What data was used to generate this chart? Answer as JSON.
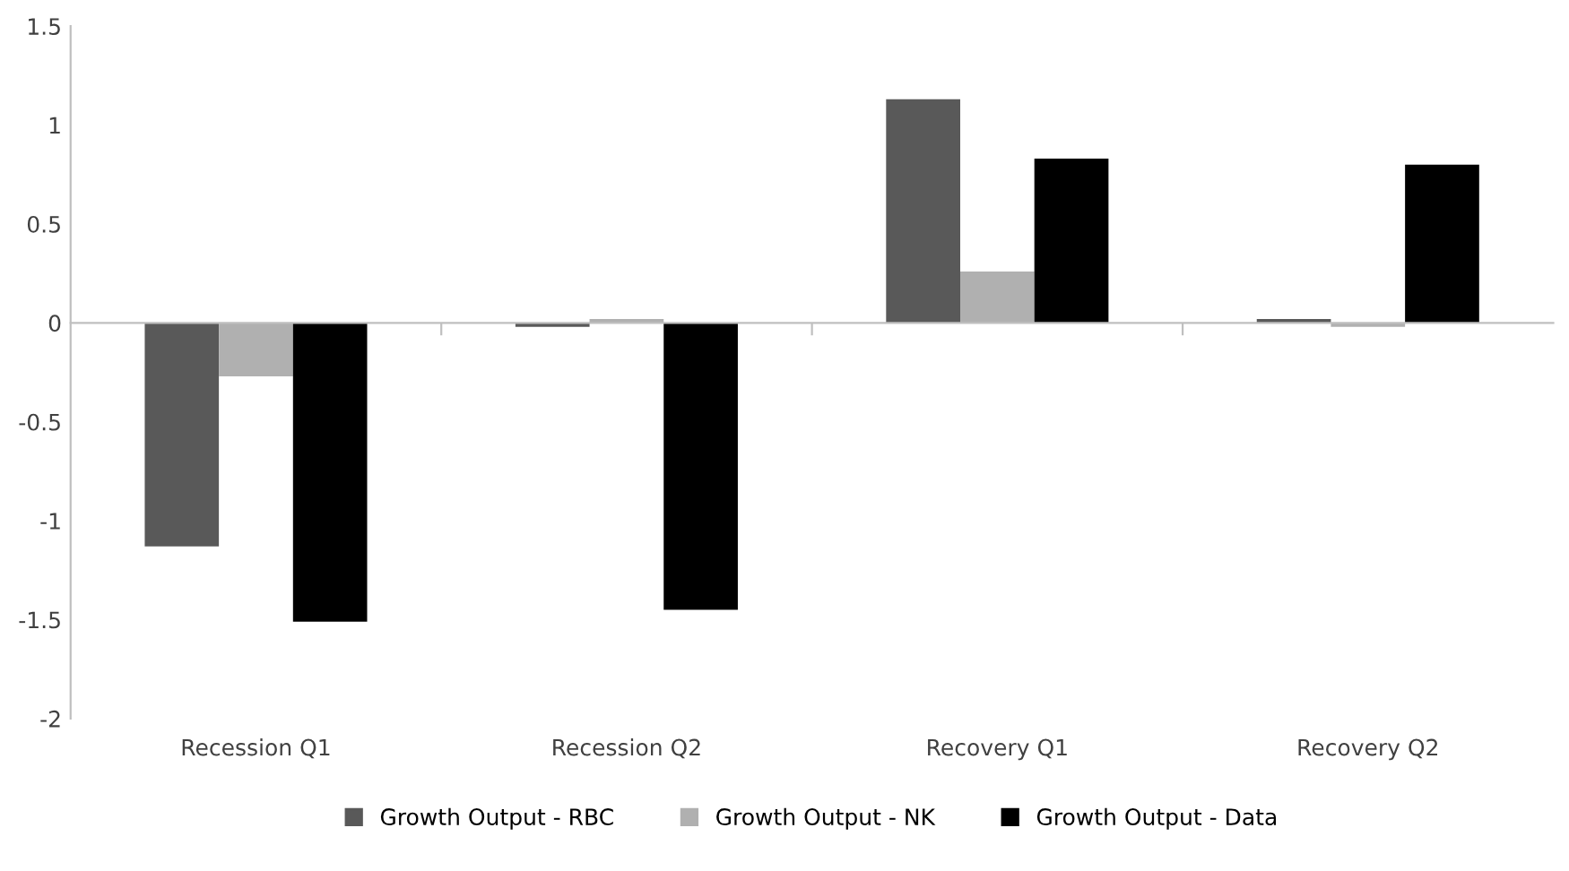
{
  "chart_data": {
    "type": "bar",
    "categories": [
      "Recession Q1",
      "Recession Q2",
      "Recovery Q1",
      "Recovery Q2"
    ],
    "series": [
      {
        "name": "Growth Output - RBC",
        "color": "#595959",
        "values": [
          -1.13,
          -0.02,
          1.13,
          0.02
        ]
      },
      {
        "name": "Growth Output - NK",
        "color": "#b0b0b0",
        "values": [
          -0.27,
          0.02,
          0.26,
          -0.02
        ]
      },
      {
        "name": "Growth Output - Data",
        "color": "#000000",
        "values": [
          -1.51,
          -1.45,
          0.83,
          0.8
        ]
      }
    ],
    "ylim": [
      -2,
      1.5
    ],
    "yticks": [
      -2,
      -1.5,
      -1,
      -0.5,
      0,
      0.5,
      1,
      1.5
    ],
    "legend": "bottom"
  }
}
